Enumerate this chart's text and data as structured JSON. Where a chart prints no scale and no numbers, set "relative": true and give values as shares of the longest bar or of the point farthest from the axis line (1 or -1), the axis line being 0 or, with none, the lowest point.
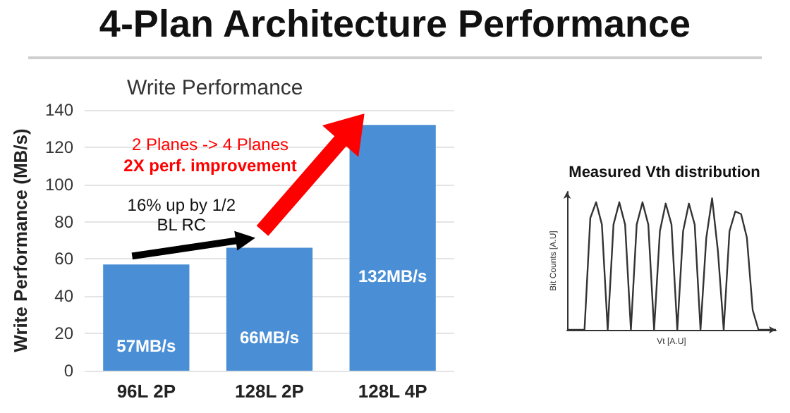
{
  "chart_data": [
    {
      "type": "bar",
      "title": "4-Plan Architecture Performance",
      "subtitle": "Write Performance",
      "ylabel": "Write Performance (MB/s)",
      "categories": [
        "96L 2P",
        "128L 2P",
        "128L 4P"
      ],
      "values": [
        57,
        66,
        132
      ],
      "value_labels": [
        "57MB/s",
        "66MB/s",
        "132MB/s"
      ],
      "color": "#4a8fd6",
      "ylim": [
        0,
        140
      ],
      "yticks": [
        0,
        20,
        40,
        60,
        80,
        100,
        120,
        140
      ],
      "grid": "y",
      "annotations": [
        {
          "text": "16% up by 1/2\nBL RC",
          "x": "128L 2P",
          "y": 66
        },
        "2 Planes -> 4 Planes",
        "2X perf. improvement"
      ]
    },
    {
      "type": "line",
      "title": "Measured Vth distribution",
      "xlabel": "Vt [A.U]",
      "ylabel": "Bit Counts [A.U]",
      "relative": true,
      "grid": false,
      "categories": [
        null,
        null,
        null,
        null,
        null,
        null,
        null,
        null,
        null,
        null,
        null,
        null,
        null,
        null,
        null,
        null,
        null,
        null,
        null,
        null,
        null,
        null,
        null,
        null,
        null,
        null,
        null,
        null,
        null,
        null,
        null,
        null,
        null,
        null,
        null,
        null,
        null
      ],
      "series": [
        {
          "color": "#333333",
          "values": [
            0,
            0,
            0,
            0,
            0.85,
            0.97,
            0.8,
            0,
            0.8,
            0.97,
            0.8,
            0,
            0.8,
            0.97,
            0.8,
            0,
            0.75,
            0.96,
            0.8,
            0,
            0.75,
            0.96,
            0.8,
            0,
            0.7,
            1,
            0.6,
            0,
            0.75,
            0.9,
            0.88,
            0.7,
            0.15,
            0,
            0,
            0,
            0
          ]
        }
      ]
    }
  ]
}
